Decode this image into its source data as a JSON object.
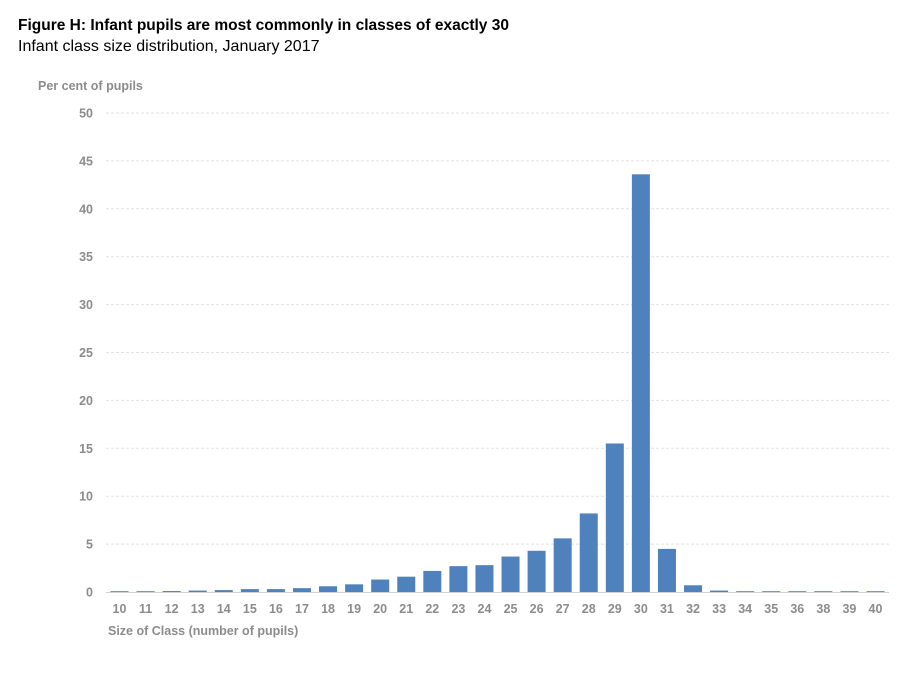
{
  "chart_data": {
    "type": "bar",
    "title": "Figure H: Infant pupils are most commonly in classes of exactly 30",
    "subtitle": "Infant class size distribution, January 2017",
    "ylabel": "Per cent of pupils",
    "xlabel": "Size of Class (number of pupils)",
    "ylim": [
      0,
      50
    ],
    "yticks": [
      0,
      5,
      10,
      15,
      20,
      25,
      30,
      35,
      40,
      45,
      50
    ],
    "grid": true,
    "bar_color": "#4f81bd",
    "categories": [
      "10",
      "11",
      "12",
      "13",
      "14",
      "15",
      "16",
      "17",
      "18",
      "19",
      "20",
      "21",
      "22",
      "23",
      "24",
      "25",
      "26",
      "27",
      "28",
      "29",
      "30",
      "31",
      "32",
      "33",
      "34",
      "35",
      "36",
      "38",
      "39",
      "40"
    ],
    "values": [
      0.05,
      0.05,
      0.1,
      0.15,
      0.2,
      0.3,
      0.3,
      0.4,
      0.6,
      0.8,
      1.3,
      1.6,
      2.2,
      2.7,
      2.8,
      3.7,
      4.3,
      5.6,
      8.2,
      15.5,
      43.6,
      4.5,
      0.7,
      0.15,
      0.05,
      0.05,
      0.05,
      0.05,
      0.05,
      0.05
    ]
  }
}
